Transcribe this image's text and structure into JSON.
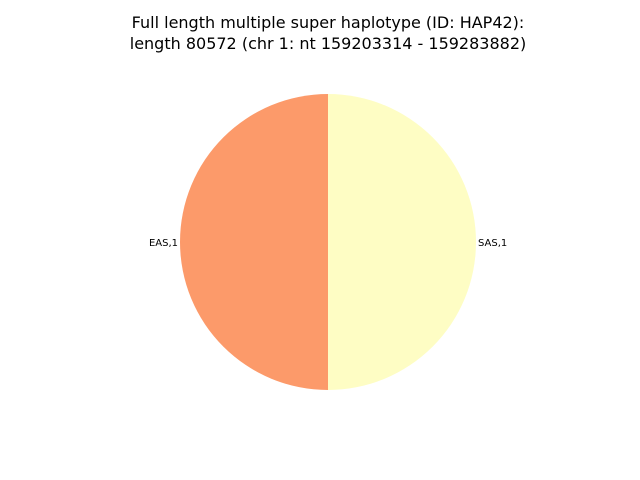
{
  "chart_data": {
    "type": "pie",
    "title_lines": [
      "Full length multiple super haplotype (ID: HAP42):",
      "length 80572 (chr 1: nt 159203314 - 159283882)"
    ],
    "slices": [
      {
        "label": "EAS,1",
        "value": 1,
        "color": "#fc9a6a"
      },
      {
        "label": "SAS,1",
        "value": 1,
        "color": "#fefdc4"
      }
    ]
  }
}
